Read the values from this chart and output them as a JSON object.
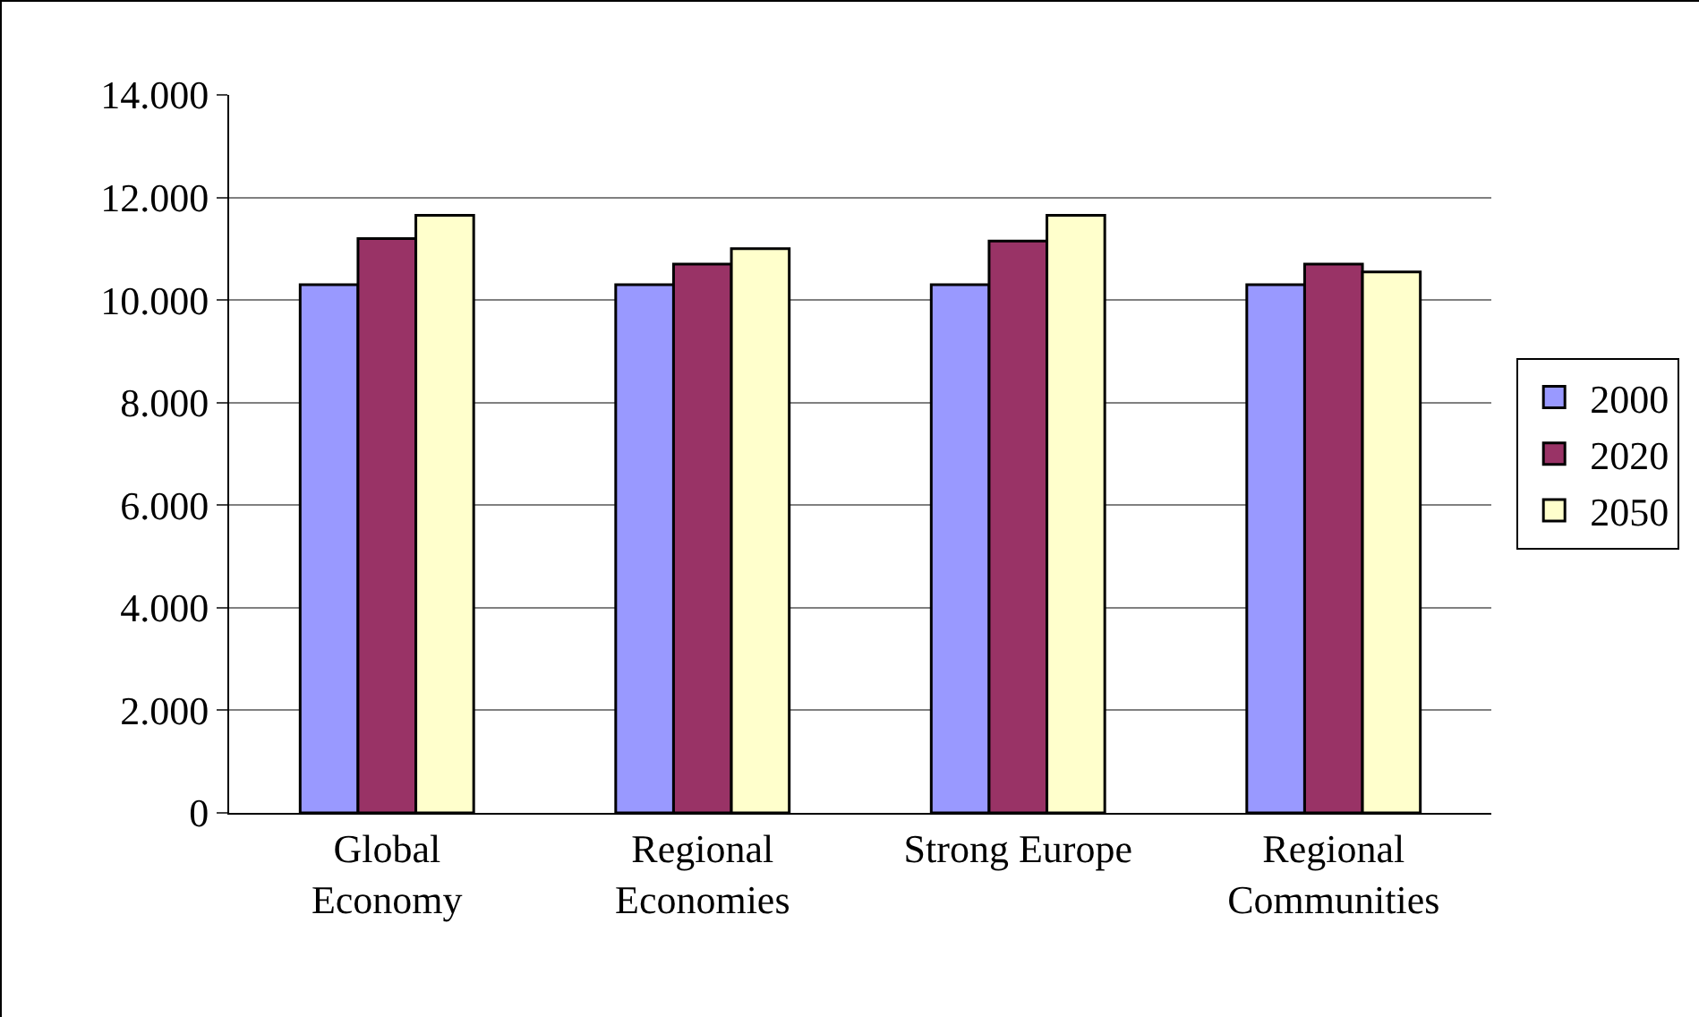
{
  "chart_data": {
    "type": "bar",
    "categories": [
      "Global\nEconomy",
      "Regional\nEconomies",
      "Strong Europe",
      "Regional\nCommunities"
    ],
    "series": [
      {
        "name": "2000",
        "color": "#9999ff",
        "values": [
          10300,
          10300,
          10300,
          10300
        ]
      },
      {
        "name": "2020",
        "color": "#993366",
        "values": [
          11200,
          10700,
          11150,
          10700
        ]
      },
      {
        "name": "2050",
        "color": "#ffffcc",
        "values": [
          11650,
          11000,
          11650,
          10550
        ]
      }
    ],
    "ylim": [
      0,
      14000
    ],
    "yticks": [
      0,
      {
        "value": 2000,
        "label": "2.000"
      },
      {
        "value": 4000,
        "label": "4.000"
      },
      {
        "value": 6000,
        "label": "6.000"
      },
      {
        "value": 8000,
        "label": "8.000"
      },
      {
        "value": 10000,
        "label": "10.000"
      },
      {
        "value": 12000,
        "label": "12.000"
      },
      {
        "value": 14000,
        "label": "14.000"
      }
    ],
    "grid": "y",
    "legend": "right"
  }
}
